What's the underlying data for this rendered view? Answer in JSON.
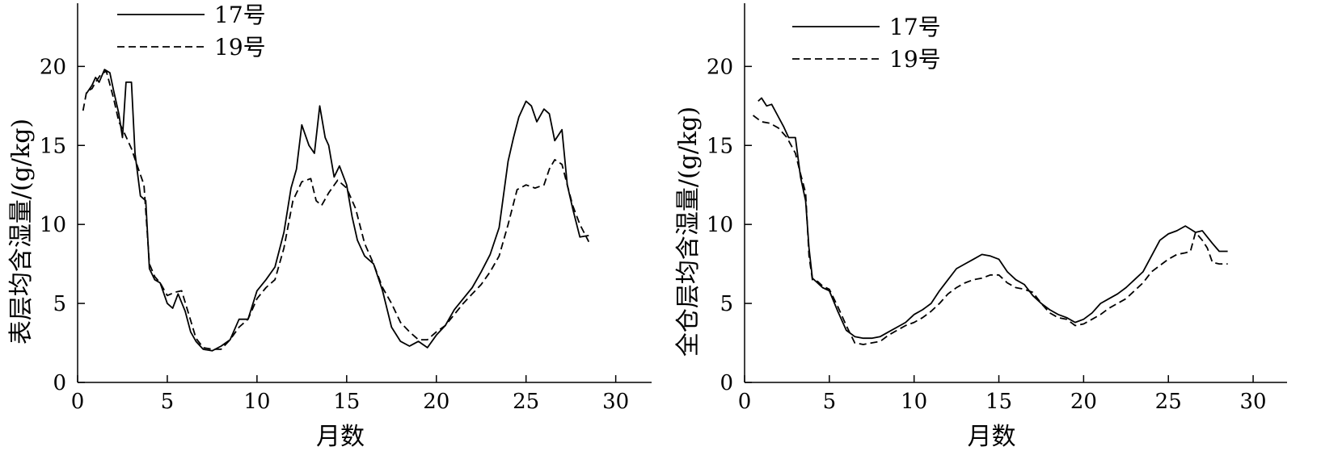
{
  "chart_data": [
    {
      "type": "line",
      "xlabel": "月数",
      "ylabel": "表层均含湿量/(g/kg)",
      "xlim": [
        0,
        32
      ],
      "ylim": [
        0,
        24
      ],
      "xticks": [
        0,
        5,
        10,
        15,
        20,
        25,
        30
      ],
      "yticks": [
        0,
        5,
        10,
        15,
        20
      ],
      "grid": false,
      "legend_position": "top-left",
      "series": [
        {
          "name": "17号",
          "style": "solid",
          "x": [
            0.5,
            0.8,
            1.0,
            1.2,
            1.5,
            1.8,
            2.0,
            2.3,
            2.5,
            2.7,
            3.0,
            3.2,
            3.5,
            3.8,
            4.0,
            4.3,
            4.6,
            5.0,
            5.3,
            5.6,
            6.0,
            6.3,
            6.6,
            7.0,
            7.5,
            8.0,
            8.5,
            9.0,
            9.5,
            10.0,
            10.5,
            11.0,
            11.5,
            11.9,
            12.2,
            12.5,
            12.9,
            13.2,
            13.5,
            13.8,
            14.0,
            14.3,
            14.6,
            15.0,
            15.3,
            15.6,
            16.0,
            16.5,
            17.0,
            17.5,
            18.0,
            18.5,
            19.0,
            19.5,
            20.0,
            20.5,
            21.0,
            21.5,
            22.0,
            22.5,
            23.0,
            23.5,
            24.0,
            24.3,
            24.6,
            25.0,
            25.3,
            25.6,
            26.0,
            26.3,
            26.6,
            27.0,
            27.3,
            27.6,
            28.0,
            28.5
          ],
          "y": [
            18.3,
            18.8,
            19.3,
            19.0,
            19.8,
            19.6,
            18.5,
            17.0,
            15.5,
            19.0,
            19.0,
            14.5,
            11.8,
            11.5,
            7.2,
            6.5,
            6.3,
            5.0,
            4.7,
            5.6,
            4.5,
            3.2,
            2.6,
            2.1,
            2.0,
            2.3,
            2.7,
            4.0,
            4.0,
            5.8,
            6.5,
            7.3,
            9.5,
            12.3,
            13.5,
            16.3,
            15.0,
            14.5,
            17.5,
            15.5,
            15.0,
            13.0,
            13.7,
            12.5,
            10.5,
            9.0,
            8.0,
            7.5,
            5.8,
            3.5,
            2.6,
            2.3,
            2.6,
            2.2,
            3.0,
            3.6,
            4.6,
            5.3,
            6.0,
            7.0,
            8.1,
            9.8,
            14.0,
            15.5,
            16.8,
            17.8,
            17.5,
            16.5,
            17.3,
            17.0,
            15.3,
            16.0,
            12.5,
            11.0,
            9.2,
            9.3
          ]
        },
        {
          "name": "19号",
          "style": "dashed",
          "x": [
            0.3,
            0.5,
            0.8,
            1.0,
            1.3,
            1.6,
            2.0,
            2.3,
            2.6,
            3.0,
            3.3,
            3.7,
            4.0,
            4.3,
            4.6,
            5.0,
            5.4,
            5.8,
            6.2,
            6.6,
            7.0,
            7.5,
            8.0,
            8.5,
            9.0,
            9.5,
            10.0,
            10.5,
            11.0,
            11.5,
            12.0,
            12.5,
            13.0,
            13.3,
            13.6,
            14.0,
            14.5,
            15.0,
            15.5,
            16.0,
            16.5,
            17.0,
            17.5,
            18.0,
            18.5,
            19.0,
            19.5,
            20.0,
            20.5,
            21.0,
            21.5,
            22.0,
            22.5,
            23.0,
            23.5,
            24.0,
            24.5,
            25.0,
            25.5,
            26.0,
            26.3,
            26.6,
            27.0,
            27.3,
            27.6,
            28.0,
            28.5
          ],
          "y": [
            17.2,
            18.4,
            18.6,
            19.0,
            19.5,
            19.7,
            18.0,
            16.5,
            15.8,
            14.8,
            13.8,
            12.5,
            7.5,
            6.7,
            6.3,
            5.5,
            5.7,
            5.8,
            4.3,
            2.8,
            2.2,
            2.1,
            2.1,
            2.7,
            3.5,
            4.0,
            5.3,
            6.0,
            6.5,
            8.5,
            11.5,
            12.7,
            12.9,
            11.5,
            11.2,
            12.0,
            12.8,
            12.3,
            11.0,
            8.8,
            7.5,
            6.0,
            5.0,
            3.8,
            3.2,
            2.7,
            2.7,
            3.2,
            3.6,
            4.3,
            5.0,
            5.6,
            6.2,
            7.0,
            8.0,
            10.0,
            12.2,
            12.5,
            12.3,
            12.5,
            13.5,
            14.1,
            13.8,
            12.5,
            11.2,
            10.0,
            8.9
          ]
        }
      ]
    },
    {
      "type": "line",
      "xlabel": "月数",
      "ylabel": "全仓层均含湿量/(g/kg)",
      "xlim": [
        0,
        32
      ],
      "ylim": [
        0,
        24
      ],
      "xticks": [
        0,
        5,
        10,
        15,
        20,
        25,
        30
      ],
      "yticks": [
        0,
        5,
        10,
        15,
        20
      ],
      "grid": false,
      "legend_position": "top-left",
      "series": [
        {
          "name": "17号",
          "style": "solid",
          "x": [
            0.8,
            1.0,
            1.3,
            1.6,
            2.0,
            2.3,
            2.6,
            3.0,
            3.3,
            3.6,
            3.8,
            4.0,
            4.3,
            4.6,
            5.0,
            5.5,
            6.0,
            6.5,
            7.0,
            7.5,
            8.0,
            8.5,
            9.0,
            9.5,
            10.0,
            10.5,
            11.0,
            11.5,
            12.0,
            12.5,
            13.0,
            13.5,
            14.0,
            14.5,
            15.0,
            15.5,
            16.0,
            16.5,
            17.0,
            17.5,
            18.0,
            18.5,
            19.0,
            19.5,
            20.0,
            20.5,
            21.0,
            21.5,
            22.0,
            22.5,
            23.0,
            23.5,
            24.0,
            24.5,
            25.0,
            25.5,
            26.0,
            26.3,
            26.6,
            27.0,
            27.3,
            27.6,
            28.0,
            28.5
          ],
          "y": [
            17.8,
            18.0,
            17.5,
            17.6,
            16.8,
            16.2,
            15.5,
            15.5,
            13.0,
            11.5,
            8.5,
            6.6,
            6.3,
            6.0,
            5.8,
            4.5,
            3.3,
            2.9,
            2.8,
            2.8,
            2.9,
            3.2,
            3.5,
            3.8,
            4.3,
            4.6,
            5.0,
            5.8,
            6.5,
            7.2,
            7.5,
            7.8,
            8.1,
            8.0,
            7.8,
            7.0,
            6.5,
            6.2,
            5.5,
            5.0,
            4.6,
            4.3,
            4.1,
            3.8,
            4.0,
            4.4,
            5.0,
            5.3,
            5.6,
            6.0,
            6.5,
            7.0,
            8.0,
            9.0,
            9.4,
            9.6,
            9.9,
            9.7,
            9.5,
            9.6,
            9.2,
            8.8,
            8.3,
            8.3
          ]
        },
        {
          "name": "19号",
          "style": "dashed",
          "x": [
            0.5,
            1.0,
            1.5,
            2.0,
            2.5,
            3.0,
            3.3,
            3.6,
            3.8,
            4.0,
            4.3,
            4.6,
            5.0,
            5.5,
            6.0,
            6.5,
            7.0,
            7.5,
            8.0,
            8.5,
            9.0,
            9.5,
            10.0,
            10.5,
            11.0,
            11.5,
            12.0,
            12.5,
            13.0,
            13.5,
            14.0,
            14.5,
            15.0,
            15.5,
            16.0,
            16.5,
            17.0,
            17.5,
            18.0,
            18.5,
            19.0,
            19.5,
            20.0,
            20.5,
            21.0,
            21.5,
            22.0,
            22.5,
            23.0,
            23.5,
            24.0,
            24.5,
            25.0,
            25.5,
            26.0,
            26.3,
            26.6,
            27.0,
            27.3,
            27.6,
            28.0,
            28.5
          ],
          "y": [
            16.9,
            16.5,
            16.4,
            16.1,
            15.5,
            14.5,
            13.2,
            12.0,
            8.0,
            6.5,
            6.4,
            6.1,
            5.9,
            4.8,
            3.6,
            2.5,
            2.4,
            2.5,
            2.6,
            3.0,
            3.3,
            3.6,
            3.8,
            4.1,
            4.5,
            5.0,
            5.6,
            6.0,
            6.3,
            6.5,
            6.6,
            6.8,
            6.8,
            6.3,
            6.0,
            5.9,
            5.7,
            5.0,
            4.4,
            4.1,
            4.0,
            3.6,
            3.7,
            4.0,
            4.3,
            4.7,
            5.0,
            5.3,
            5.8,
            6.3,
            7.0,
            7.4,
            7.8,
            8.1,
            8.2,
            8.3,
            9.5,
            9.0,
            8.5,
            7.6,
            7.5,
            7.5
          ]
        }
      ]
    }
  ]
}
